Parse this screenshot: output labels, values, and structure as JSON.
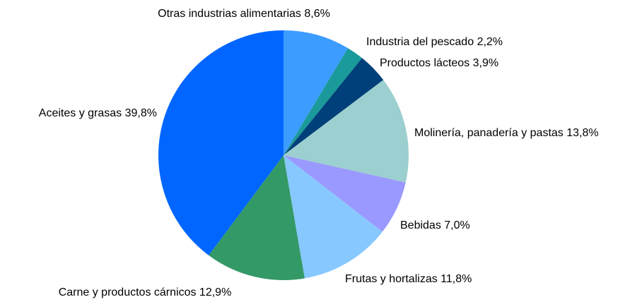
{
  "chart_data": {
    "type": "pie",
    "categories": [
      "Otras industrias alimentarias",
      "Industria del pescado",
      "Productos lácteos",
      "Molinería, panadería y pastas",
      "Bebidas",
      "Frutas y hortalizas",
      "Carne y productos cárnicos",
      "Aceites y grasas"
    ],
    "values": [
      8.6,
      2.2,
      3.9,
      13.8,
      7.0,
      11.8,
      12.9,
      39.8
    ],
    "value_labels": [
      "8,6%",
      "2,2%",
      "3,9%",
      "13,8%",
      "7,0%",
      "11,8%",
      "12,9%",
      "39,8%"
    ],
    "colors": [
      "#3c9cff",
      "#1a9a9a",
      "#00407a",
      "#9ccfcf",
      "#9999ff",
      "#87c8ff",
      "#339966",
      "#0066ff"
    ]
  }
}
